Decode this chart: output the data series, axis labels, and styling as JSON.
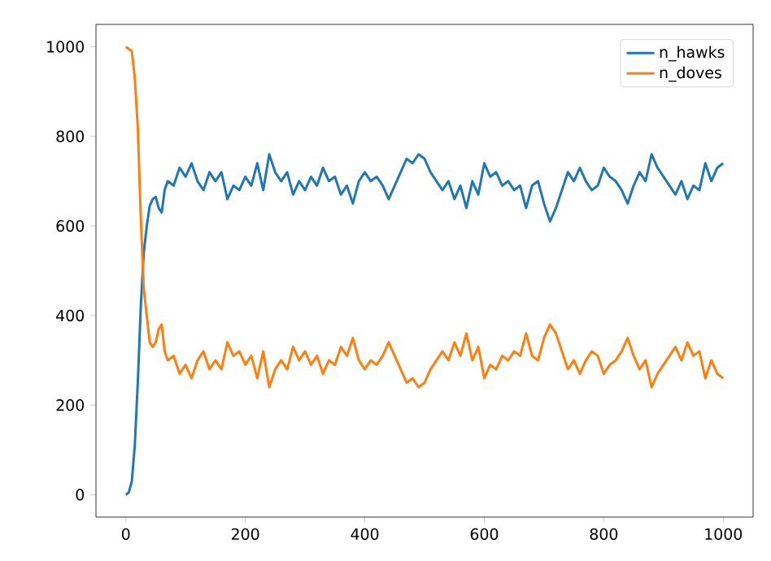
{
  "chart_data": {
    "type": "line",
    "x": [
      0,
      5,
      10,
      15,
      20,
      25,
      30,
      35,
      40,
      45,
      50,
      55,
      60,
      65,
      70,
      80,
      90,
      100,
      110,
      120,
      130,
      140,
      150,
      160,
      170,
      180,
      190,
      200,
      210,
      220,
      230,
      240,
      250,
      260,
      270,
      280,
      290,
      300,
      310,
      320,
      330,
      340,
      350,
      360,
      370,
      380,
      390,
      400,
      410,
      420,
      430,
      440,
      450,
      460,
      470,
      480,
      490,
      500,
      510,
      520,
      530,
      540,
      550,
      560,
      570,
      580,
      590,
      600,
      610,
      620,
      630,
      640,
      650,
      660,
      670,
      680,
      690,
      700,
      710,
      720,
      730,
      740,
      750,
      760,
      770,
      780,
      790,
      800,
      810,
      820,
      830,
      840,
      850,
      860,
      870,
      880,
      890,
      900,
      910,
      920,
      930,
      940,
      950,
      960,
      970,
      980,
      990,
      1000
    ],
    "series": [
      {
        "name": "n_hawks",
        "color": "#1f77b4",
        "values": [
          0,
          5,
          30,
          110,
          250,
          420,
          540,
          600,
          645,
          660,
          665,
          640,
          630,
          680,
          700,
          690,
          730,
          710,
          740,
          700,
          680,
          720,
          700,
          720,
          660,
          690,
          680,
          710,
          690,
          740,
          680,
          760,
          720,
          700,
          720,
          670,
          700,
          680,
          710,
          690,
          730,
          700,
          710,
          670,
          690,
          650,
          700,
          720,
          700,
          710,
          690,
          660,
          690,
          720,
          750,
          740,
          760,
          750,
          720,
          700,
          680,
          700,
          660,
          690,
          640,
          700,
          670,
          740,
          710,
          720,
          690,
          700,
          680,
          690,
          640,
          690,
          700,
          650,
          610,
          640,
          680,
          720,
          700,
          730,
          700,
          680,
          690,
          730,
          710,
          700,
          680,
          650,
          690,
          720,
          700,
          760,
          730,
          710,
          690,
          670,
          700,
          660,
          690,
          680,
          740,
          700,
          730,
          740
        ]
      },
      {
        "name": "n_doves",
        "color": "#ff7f0e",
        "values": [
          1000,
          995,
          990,
          930,
          820,
          620,
          460,
          400,
          340,
          330,
          340,
          370,
          380,
          320,
          300,
          310,
          270,
          290,
          260,
          300,
          320,
          280,
          300,
          280,
          340,
          310,
          320,
          290,
          310,
          260,
          320,
          240,
          280,
          300,
          280,
          330,
          300,
          320,
          290,
          310,
          270,
          300,
          290,
          330,
          310,
          350,
          300,
          280,
          300,
          290,
          310,
          340,
          310,
          280,
          250,
          260,
          240,
          250,
          280,
          300,
          320,
          300,
          340,
          310,
          360,
          300,
          330,
          260,
          290,
          280,
          310,
          300,
          320,
          310,
          360,
          310,
          300,
          350,
          380,
          360,
          320,
          280,
          300,
          270,
          300,
          320,
          310,
          270,
          290,
          300,
          320,
          350,
          310,
          280,
          300,
          240,
          270,
          290,
          310,
          330,
          300,
          340,
          310,
          320,
          260,
          300,
          270,
          260
        ]
      }
    ],
    "xlim": [
      -50,
      1050
    ],
    "ylim": [
      -50,
      1050
    ],
    "xticks": [
      0,
      200,
      400,
      600,
      800,
      1000
    ],
    "yticks": [
      0,
      200,
      400,
      600,
      800,
      1000
    ],
    "legend": "top right",
    "grid": false,
    "marker": "none",
    "line_style": "solid"
  }
}
